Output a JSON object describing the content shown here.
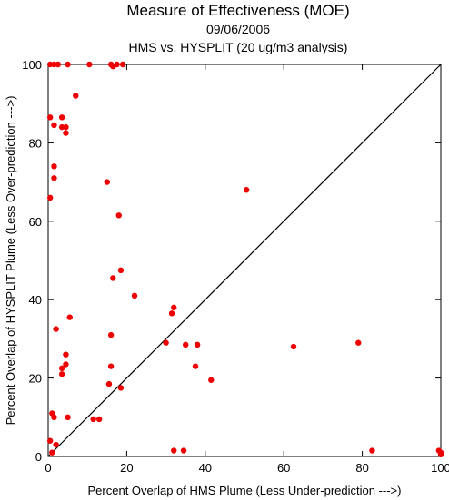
{
  "chart_data": {
    "type": "scatter",
    "title": "Measure of Effectiveness (MOE)",
    "subtitle": "09/06/2006",
    "subtitle2": "HMS vs. HYSPLIT  (20 ug/m3 analysis)",
    "xlabel": "Percent Overlap of HMS Plume (Less Under-prediction --->)",
    "ylabel": "Percent Overlap of HYSPLIT Plume (Less Over-prediction --->)",
    "xlim": [
      0,
      100
    ],
    "ylim": [
      0,
      100
    ],
    "xticks": [
      "0",
      "20",
      "40",
      "60",
      "80",
      "100"
    ],
    "yticks": [
      "0",
      "20",
      "40",
      "60",
      "80",
      "100"
    ],
    "grid": false,
    "reference_line": "y = x",
    "point_color": "#ee0000",
    "points": [
      [
        0.5,
        100
      ],
      [
        1.5,
        100
      ],
      [
        2.5,
        100
      ],
      [
        5,
        100
      ],
      [
        10.5,
        100
      ],
      [
        16,
        100
      ],
      [
        16.5,
        99.5
      ],
      [
        17.5,
        100
      ],
      [
        19,
        100
      ],
      [
        7,
        92
      ],
      [
        0.5,
        86.5
      ],
      [
        3.5,
        86.5
      ],
      [
        1.5,
        84.5
      ],
      [
        3.5,
        84
      ],
      [
        4.5,
        84
      ],
      [
        4.5,
        82.5
      ],
      [
        1.5,
        74
      ],
      [
        1.5,
        71
      ],
      [
        15,
        70
      ],
      [
        0.5,
        66
      ],
      [
        50.5,
        68
      ],
      [
        18,
        61.5
      ],
      [
        18.5,
        47.5
      ],
      [
        16.5,
        45.5
      ],
      [
        22,
        41
      ],
      [
        32,
        38
      ],
      [
        31.5,
        36.5
      ],
      [
        5.5,
        35.5
      ],
      [
        2,
        32.5
      ],
      [
        16,
        31
      ],
      [
        30,
        29
      ],
      [
        35,
        28.5
      ],
      [
        38,
        28.5
      ],
      [
        62.5,
        28
      ],
      [
        79,
        29
      ],
      [
        4.5,
        26
      ],
      [
        4.5,
        23.5
      ],
      [
        37.5,
        23
      ],
      [
        16,
        23
      ],
      [
        3.5,
        22.5
      ],
      [
        3.5,
        21
      ],
      [
        41.5,
        19.5
      ],
      [
        15.5,
        18.5
      ],
      [
        18.5,
        17.5
      ],
      [
        1,
        11
      ],
      [
        1.5,
        10
      ],
      [
        5,
        10
      ],
      [
        11.5,
        9.5
      ],
      [
        13,
        9.5
      ],
      [
        0.5,
        4
      ],
      [
        2,
        3
      ],
      [
        1,
        1
      ],
      [
        32,
        1.5
      ],
      [
        34.5,
        1.5
      ],
      [
        82.5,
        1.5
      ],
      [
        99.5,
        1.5
      ],
      [
        100,
        1
      ],
      [
        100,
        0.5
      ]
    ]
  }
}
